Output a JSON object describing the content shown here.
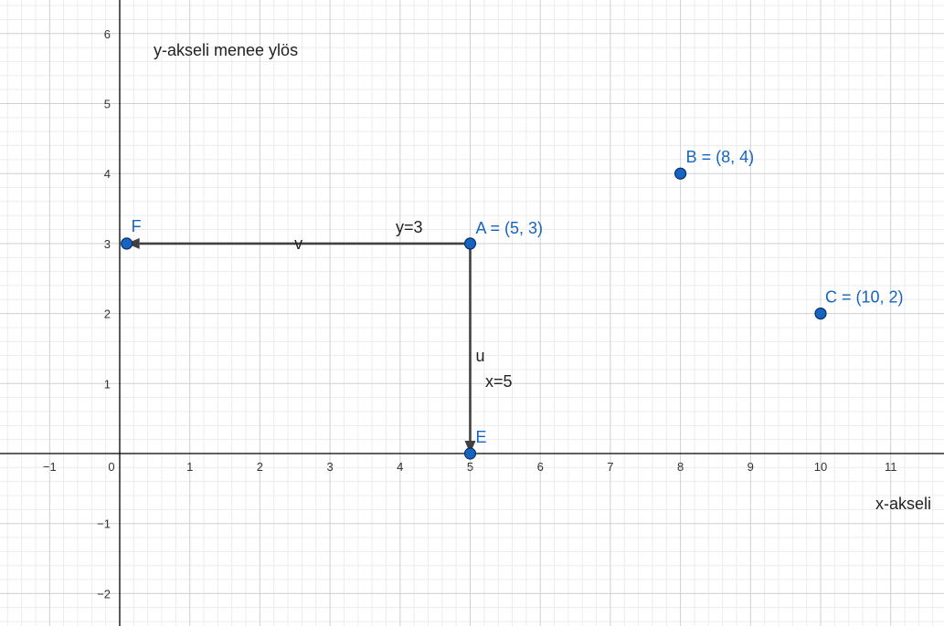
{
  "axes": {
    "x_ticks": [
      "−1",
      "0",
      "1",
      "2",
      "3",
      "4",
      "5",
      "6",
      "7",
      "8",
      "9",
      "10",
      "11"
    ],
    "y_ticks": [
      "−2",
      "−1",
      "1",
      "2",
      "3",
      "4",
      "5",
      "6"
    ],
    "x_label": "x-akseli",
    "y_label": "y-akseli menee ylös",
    "grid": true
  },
  "points": [
    {
      "key": "A",
      "label": "A = (5, 3)",
      "x": 5,
      "y": 3
    },
    {
      "key": "B",
      "label": "B = (8, 4)",
      "x": 8,
      "y": 4
    },
    {
      "key": "C",
      "label": "C = (10, 2)",
      "x": 10,
      "y": 2
    },
    {
      "key": "E",
      "label": "E",
      "x": 5,
      "y": 0
    },
    {
      "key": "F",
      "label": "F",
      "x": 0.1,
      "y": 3
    }
  ],
  "vectors": [
    {
      "key": "v",
      "label": "v",
      "from": [
        5,
        3
      ],
      "to": [
        0.1,
        3
      ]
    },
    {
      "key": "u",
      "label": "u",
      "from": [
        5,
        3
      ],
      "to": [
        5,
        0
      ]
    }
  ],
  "annotations": {
    "y3": "y=3",
    "x5": "x=5"
  },
  "colors": {
    "point_fill": "#1565c0",
    "point_label": "#1565c0",
    "vector": "#404040",
    "axis": "#000000",
    "grid_major": "#cfcfcf",
    "grid_minor": "#ececec"
  }
}
